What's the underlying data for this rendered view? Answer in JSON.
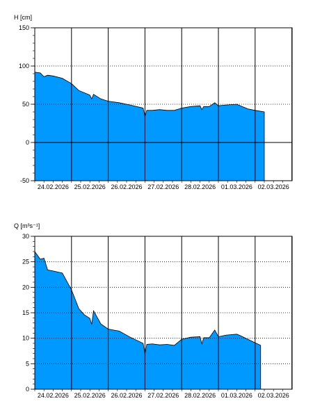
{
  "chart_data": [
    {
      "type": "area",
      "ylabel": "H [cm]",
      "ylim": [
        -50,
        150
      ],
      "yticks": [
        150,
        100,
        50,
        0,
        -50
      ],
      "x_ticks": [
        "24.02.2026",
        "25.02.2026",
        "26.02.2026",
        "27.02.2026",
        "28.02.2026",
        "01.03.2026",
        "02.03.2026"
      ],
      "grid": true,
      "fill_color": "#0099ff",
      "series": [
        {
          "x": [
            0,
            0.15,
            0.25,
            0.35,
            0.5,
            0.75,
            1.0,
            1.2,
            1.5,
            1.55,
            1.6,
            1.8,
            2.0,
            2.3,
            2.6,
            2.95,
            3.0,
            3.05,
            3.2,
            3.4,
            3.6,
            3.8,
            4.0,
            4.25,
            4.5,
            4.55,
            4.6,
            4.75,
            4.9,
            5.0,
            5.2,
            5.5,
            5.6,
            5.8,
            6.0,
            6.25
          ],
          "y": [
            92,
            91,
            86,
            88,
            87,
            84,
            77,
            68,
            62,
            57,
            63,
            57,
            54,
            52,
            49,
            45,
            34,
            42,
            42,
            43,
            42,
            42,
            45,
            47,
            48,
            43,
            47,
            47,
            52,
            48,
            49,
            50,
            48,
            44,
            42,
            40
          ]
        }
      ]
    },
    {
      "type": "area",
      "ylabel": "Q [m³s⁻¹]",
      "ylim": [
        0,
        30
      ],
      "yticks": [
        30,
        25,
        20,
        15,
        10,
        5,
        0
      ],
      "x_ticks": [
        "24.02.2026",
        "25.02.2026",
        "26.02.2026",
        "27.02.2026",
        "28.02.2026",
        "01.03.2026",
        "02.03.2026"
      ],
      "grid": true,
      "fill_color": "#0099ff",
      "series": [
        {
          "x": [
            0,
            0.15,
            0.25,
            0.35,
            0.5,
            0.75,
            1.0,
            1.2,
            1.35,
            1.5,
            1.55,
            1.6,
            1.8,
            2.0,
            2.3,
            2.6,
            2.95,
            3.0,
            3.05,
            3.2,
            3.4,
            3.6,
            3.8,
            4.0,
            4.25,
            4.5,
            4.55,
            4.6,
            4.75,
            4.9,
            5.0,
            5.2,
            5.5,
            5.6,
            5.8,
            6.0,
            6.15
          ],
          "y": [
            27,
            25.5,
            25.7,
            23.4,
            23.2,
            22.8,
            19.5,
            15.8,
            14.6,
            13.9,
            12.7,
            15.4,
            12.8,
            11.8,
            11.4,
            10.2,
            9.0,
            6.9,
            8.8,
            8.9,
            8.7,
            8.8,
            8.6,
            9.8,
            10.2,
            10.3,
            8.9,
            10.1,
            10.1,
            11.6,
            10.3,
            10.6,
            10.8,
            10.5,
            9.8,
            9.1,
            8.6
          ]
        }
      ]
    }
  ]
}
